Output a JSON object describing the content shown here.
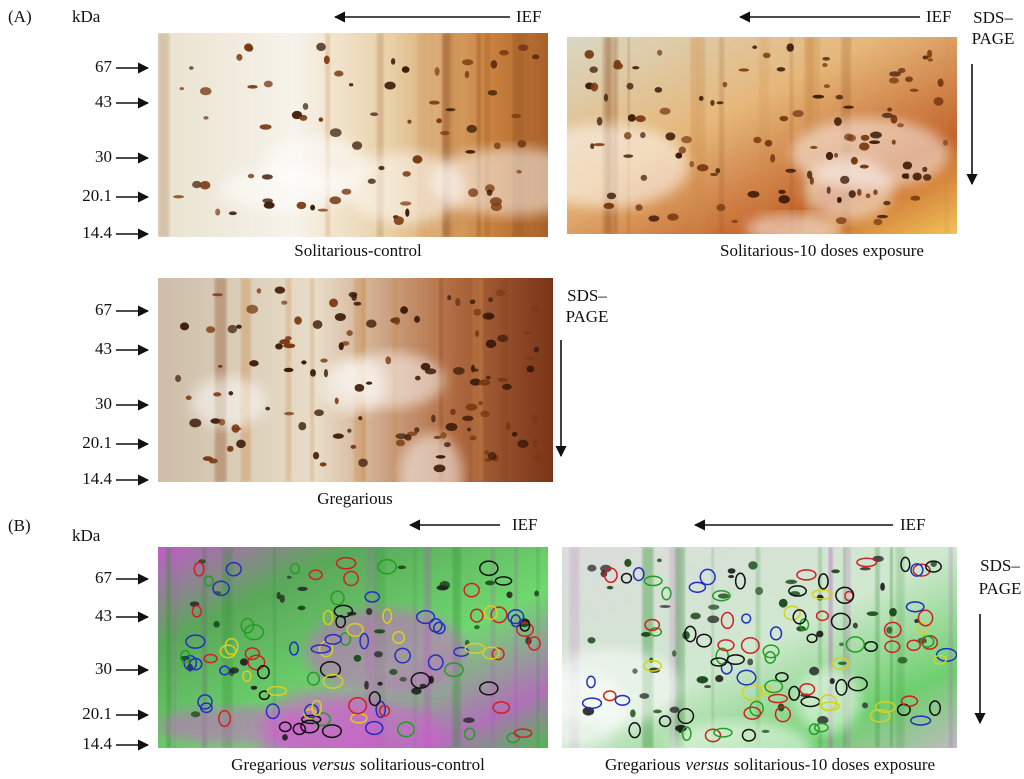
{
  "panel_a": {
    "label": "(A)",
    "unit": "kDa",
    "ief_label": "IEF",
    "sds_page_lines": [
      "SDS–",
      "PAGE"
    ],
    "markers": [
      "67",
      "43",
      "30",
      "20.1",
      "14.4"
    ],
    "gels": [
      {
        "caption": "Solitarious-control"
      },
      {
        "caption": "Solitarious-10 doses exposure"
      },
      {
        "caption": "Gregarious"
      }
    ]
  },
  "panel_b": {
    "label": "(B)",
    "unit": "kDa",
    "ief_label": "IEF",
    "sds_page_lines": [
      "SDS–",
      "PAGE"
    ],
    "markers": [
      "67",
      "43",
      "30",
      "20.1",
      "14.4"
    ],
    "gels": [
      {
        "caption": {
          "before": "Gregarious",
          "emphasis": "versus",
          "after": "solitarious-control"
        }
      },
      {
        "caption": {
          "before": "Gregarious",
          "emphasis": "versus",
          "after": "solitarious-10 doses exposure"
        }
      }
    ]
  }
}
